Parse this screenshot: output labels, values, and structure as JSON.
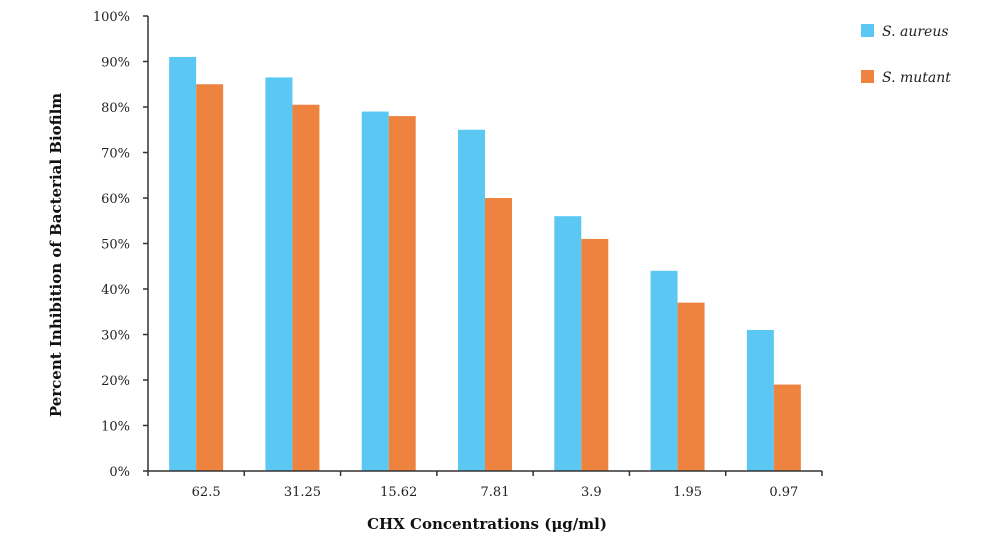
{
  "chart_data": {
    "type": "bar",
    "categories": [
      "62.5",
      "31.25",
      "15.62",
      "7.81",
      "3.9",
      "1.95",
      "0.97"
    ],
    "series": [
      {
        "name": "S. aureus",
        "color": "#5bc7f3",
        "values": [
          91,
          86.5,
          79,
          75,
          56,
          44,
          31
        ]
      },
      {
        "name": "S. mutant",
        "color": "#ee833f",
        "values": [
          85,
          80.5,
          78,
          60,
          51,
          37,
          19
        ]
      }
    ],
    "xlabel": "CHX Concentrations (μg/ml)",
    "ylabel": "Percent Inhibition of Bacterial Biofilm",
    "ylim": [
      0,
      100
    ],
    "yticks": [
      "0%",
      "10%",
      "20%",
      "30%",
      "40%",
      "50%",
      "60%",
      "70%",
      "80%",
      "90%",
      "100%"
    ],
    "grid": false,
    "legend": "top-right"
  }
}
